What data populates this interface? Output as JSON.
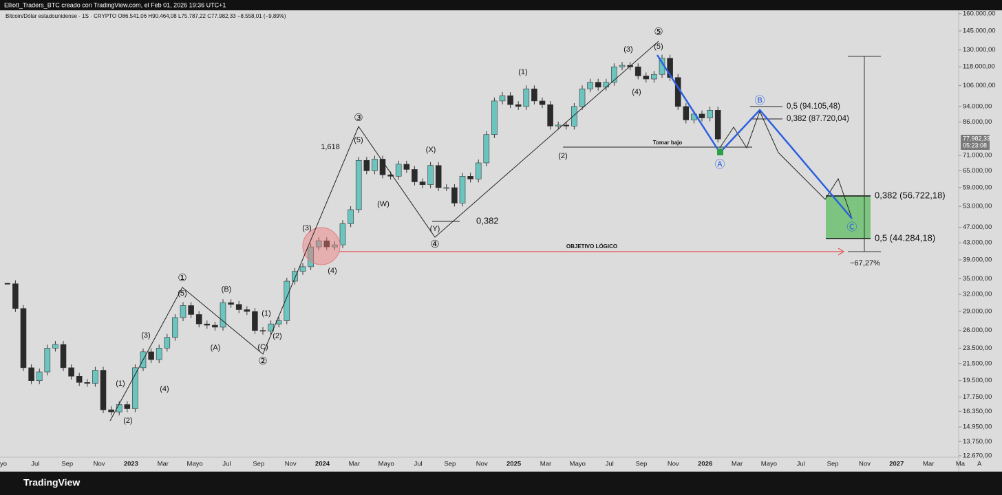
{
  "chart_data": {
    "type": "candlestick",
    "header": "Elliott_Traders_BTC creado con TradingView.com, el Feb 01, 2026 19:36 UTC+1",
    "symbol_line": "Bitcoin/Dólar estadounidense · 1S · CRYPTO   O86.541,06   H90.464,08   L75.787,22   C77.982,33   −8.558,01 (−9,89%)",
    "brand": "TradingView",
    "auto_button": "A",
    "last_price_label": "77.982,33",
    "countdown": "05:23:08",
    "log_scale": true,
    "up_color": "#6cc4bf",
    "down_color": "#2a2a2a",
    "ylim": [
      12670,
      160000
    ],
    "yticks": [
      {
        "value": 160000,
        "label": "160.000,00"
      },
      {
        "value": 145000,
        "label": "145.000,00"
      },
      {
        "value": 130000,
        "label": "130.000,00"
      },
      {
        "value": 118000,
        "label": "118.000,00"
      },
      {
        "value": 106000,
        "label": "106.000,00"
      },
      {
        "value": 94000,
        "label": "94.000,00"
      },
      {
        "value": 86000,
        "label": "86.000,00"
      },
      {
        "value": 71000,
        "label": "71.000,00"
      },
      {
        "value": 65000,
        "label": "65.000,00"
      },
      {
        "value": 59000,
        "label": "59.000,00"
      },
      {
        "value": 53000,
        "label": "53.000,00"
      },
      {
        "value": 47000,
        "label": "47.000,00"
      },
      {
        "value": 43000,
        "label": "43.000,00"
      },
      {
        "value": 39000,
        "label": "39.000,00"
      },
      {
        "value": 35000,
        "label": "35.000,00"
      },
      {
        "value": 32000,
        "label": "32.000,00"
      },
      {
        "value": 29000,
        "label": "29.000,00"
      },
      {
        "value": 26000,
        "label": "26.000,00"
      },
      {
        "value": 23500,
        "label": "23.500,00"
      },
      {
        "value": 21500,
        "label": "21.500,00"
      },
      {
        "value": 19500,
        "label": "19.500,00"
      },
      {
        "value": 17750,
        "label": "17.750,00"
      },
      {
        "value": 16350,
        "label": "16.350,00"
      },
      {
        "value": 14950,
        "label": "14.950,00"
      },
      {
        "value": 13750,
        "label": "13.750,00"
      },
      {
        "value": 12670,
        "label": "12.670,00"
      }
    ],
    "xticks": [
      "yo",
      "Jul",
      "Sep",
      "Nov",
      "2023",
      "Mar",
      "Mayo",
      "Jul",
      "Sep",
      "Nov",
      "2024",
      "Mar",
      "Mayo",
      "Jul",
      "Sep",
      "Nov",
      "2025",
      "Mar",
      "Mayo",
      "Jul",
      "Sep",
      "Nov",
      "2026",
      "Mar",
      "Mayo",
      "Jul",
      "Sep",
      "Nov",
      "2027",
      "Mar",
      "Ma"
    ],
    "values": [
      34000,
      29500,
      21000,
      19500,
      20500,
      23500,
      24000,
      21000,
      20000,
      19300,
      19200,
      20700,
      16500,
      16300,
      17000,
      16600,
      21000,
      23000,
      22000,
      23500,
      25000,
      28000,
      30000,
      28500,
      27000,
      26800,
      26500,
      30500,
      30200,
      29300,
      29000,
      26000,
      25900,
      27000,
      27500,
      34500,
      36500,
      37500,
      42000,
      43500,
      42000,
      42500,
      48000,
      52000,
      69000,
      65000,
      69500,
      63500,
      63000,
      67500,
      65500,
      61000,
      60000,
      67000,
      59000,
      59000,
      54000,
      63000,
      62000,
      68000,
      80000,
      97000,
      100000,
      95000,
      94000,
      104000,
      97000,
      95000,
      84000,
      84500,
      84000,
      94000,
      104000,
      108000,
      105000,
      108000,
      118000,
      119000,
      118000,
      112000,
      110000,
      113000,
      124000,
      111000,
      94000,
      87000,
      90000,
      88000,
      92000,
      77982.33
    ],
    "annotations": [
      "①",
      "(5)",
      "(3)",
      "(1)",
      "(2)",
      "(4)",
      "(B)",
      "(A)",
      "(C)",
      "②",
      "(1)",
      "(2)",
      "(3)",
      "(4)",
      "③",
      "(5)",
      "1,618",
      "(W)",
      "(X)",
      "(Y)",
      "④",
      "0,382",
      "(1)",
      "(2)",
      "(3)",
      "(4)",
      "⑤",
      "(5)",
      "Tomar bajo",
      "Ⓐ",
      "Ⓑ",
      "Ⓒ",
      "0,5 (94.105,48)",
      "0,382 (87.720,04)",
      "0,382 (56.722,18)",
      "0,5 (44.284,18)",
      "OBJETIVO LÓGICO",
      "−67,27%"
    ]
  }
}
